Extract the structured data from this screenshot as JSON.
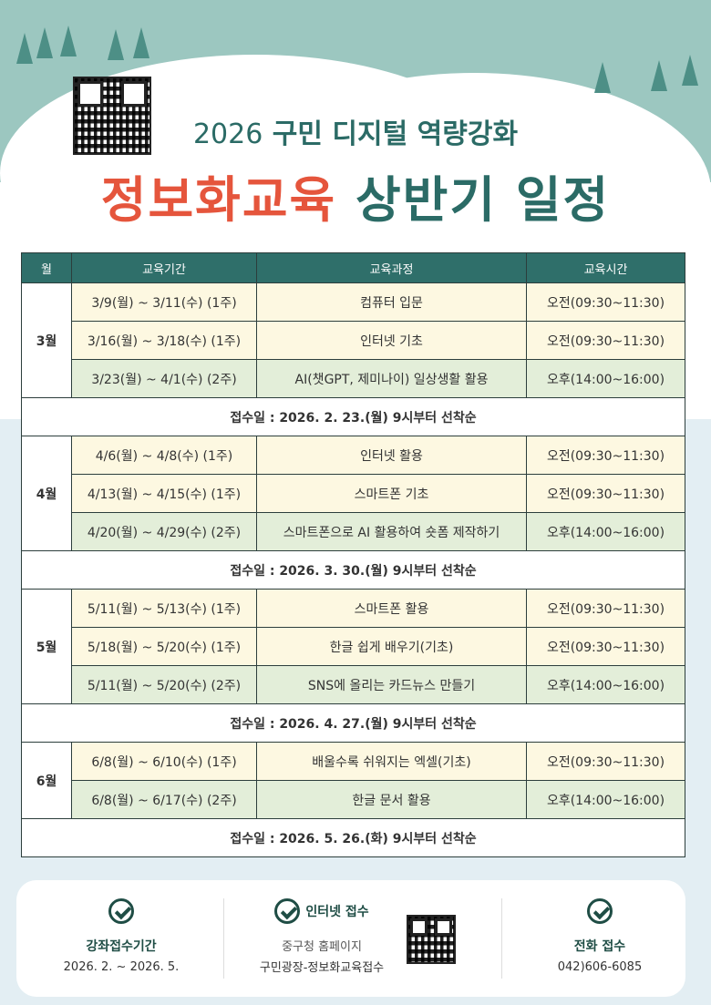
{
  "header": {
    "year": "2026",
    "subtitle": "구민 디지털 역량강화",
    "title_red": "정보화교육",
    "title_teal": "상반기 일정"
  },
  "colors": {
    "header_bg": "#2f6f6a",
    "title_red": "#e5553c",
    "title_teal": "#2b6b66",
    "row_cream": "#fdf8e1",
    "row_green": "#e3eed9"
  },
  "table": {
    "headers": [
      "월",
      "교육기간",
      "교육과정",
      "교육시간"
    ],
    "months": [
      {
        "month": "3월",
        "rows": [
          [
            "3/9(월) ~ 3/11(수) (1주)",
            "컴퓨터 입문",
            "오전(09:30~11:30)"
          ],
          [
            "3/16(월) ~ 3/18(수) (1주)",
            "인터넷 기초",
            "오전(09:30~11:30)"
          ],
          [
            "3/23(월) ~ 4/1(수) (2주)",
            "AI(챗GPT, 제미나이) 일상생활 활용",
            "오후(14:00~16:00)"
          ]
        ],
        "note": "접수일 : 2026. 2. 23.(월) 9시부터 선착순"
      },
      {
        "month": "4월",
        "rows": [
          [
            "4/6(월) ~ 4/8(수) (1주)",
            "인터넷 활용",
            "오전(09:30~11:30)"
          ],
          [
            "4/13(월) ~ 4/15(수) (1주)",
            "스마트폰 기초",
            "오전(09:30~11:30)"
          ],
          [
            "4/20(월) ~ 4/29(수) (2주)",
            "스마트폰으로 AI 활용하여 숏폼 제작하기",
            "오후(14:00~16:00)"
          ]
        ],
        "note": "접수일 : 2026. 3. 30.(월) 9시부터 선착순"
      },
      {
        "month": "5월",
        "rows": [
          [
            "5/11(월) ~ 5/13(수) (1주)",
            "스마트폰 활용",
            "오전(09:30~11:30)"
          ],
          [
            "5/18(월) ~ 5/20(수) (1주)",
            "한글 쉽게 배우기(기초)",
            "오전(09:30~11:30)"
          ],
          [
            "5/11(월) ~ 5/20(수) (2주)",
            "SNS에 올리는 카드뉴스 만들기",
            "오후(14:00~16:00)"
          ]
        ],
        "note": "접수일 : 2026. 4. 27.(월) 9시부터 선착순"
      },
      {
        "month": "6월",
        "rows": [
          [
            "6/8(월) ~ 6/10(수) (1주)",
            "배울수록 쉬워지는 엑셀(기초)",
            "오전(09:30~11:30)"
          ],
          [
            "6/8(월) ~ 6/17(수) (2주)",
            "한글 문서 활용",
            "오후(14:00~16:00)"
          ]
        ],
        "note": "접수일 : 2026. 5. 26.(화) 9시부터 선착순"
      }
    ]
  },
  "footer": {
    "period": {
      "label": "강좌접수기간",
      "value": "2026. 2. ~ 2026. 5."
    },
    "internet": {
      "label": "인터넷 접수",
      "line1": "중구청 홈페이지",
      "line2": "구민광장-정보화교육접수"
    },
    "phone": {
      "label": "전화 접수",
      "value": "042)606-6085"
    }
  }
}
